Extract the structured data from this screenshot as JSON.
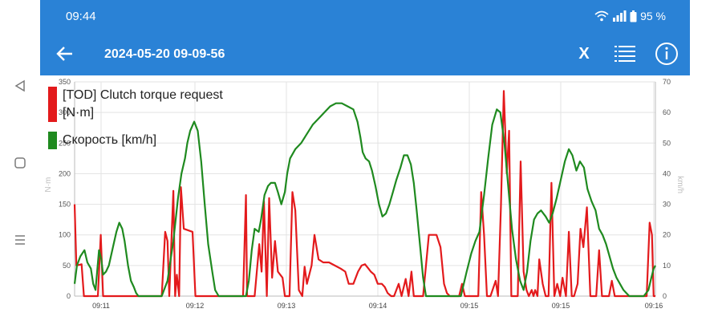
{
  "status_bar": {
    "time": "09:44",
    "battery": "95 %"
  },
  "toolbar": {
    "title": "2024-05-20 09-09-56",
    "x_label": "X"
  },
  "icons": {
    "back": "arrow-left-icon",
    "list": "list-icon",
    "info": "info-icon",
    "x": "close-x-text"
  },
  "colors": {
    "header": "#2a82d6",
    "series_torque": "#e31a1c",
    "series_speed": "#1f8a1f",
    "grid": "#dcdcdc"
  },
  "chart_data": {
    "type": "line",
    "x_ticks": [
      "09:11",
      "09:12",
      "09:13",
      "09:14",
      "09:15",
      "09:15",
      "09:16"
    ],
    "left_axis": {
      "label": "N·m",
      "ticks": [
        0,
        50,
        100,
        150,
        200,
        250,
        300,
        350
      ],
      "range": [
        0,
        350
      ]
    },
    "right_axis": {
      "label": "km/h",
      "ticks": [
        0,
        10,
        20,
        30,
        40,
        50,
        60,
        70
      ],
      "range": [
        0,
        70
      ]
    },
    "legend": [
      {
        "label": "[TOD] Clutch torque request [N·m]",
        "color": "#e31a1c"
      },
      {
        "label": "Скорость [km/h]",
        "color": "#1f8a1f"
      }
    ],
    "series": [
      {
        "name": "[TOD] Clutch torque request [N·m]",
        "axis": "left",
        "color": "#e31a1c",
        "points": [
          [
            0.0,
            150
          ],
          [
            0.003,
            50
          ],
          [
            0.012,
            52
          ],
          [
            0.016,
            0
          ],
          [
            0.04,
            0
          ],
          [
            0.045,
            100
          ],
          [
            0.049,
            0
          ],
          [
            0.065,
            0
          ],
          [
            0.15,
            0
          ],
          [
            0.156,
            105
          ],
          [
            0.16,
            90
          ],
          [
            0.163,
            0
          ],
          [
            0.17,
            172
          ],
          [
            0.173,
            0
          ],
          [
            0.176,
            35
          ],
          [
            0.18,
            0
          ],
          [
            0.183,
            178
          ],
          [
            0.188,
            110
          ],
          [
            0.203,
            105
          ],
          [
            0.208,
            0
          ],
          [
            0.26,
            0
          ],
          [
            0.29,
            0
          ],
          [
            0.295,
            165
          ],
          [
            0.297,
            0
          ],
          [
            0.31,
            0
          ],
          [
            0.318,
            85
          ],
          [
            0.322,
            40
          ],
          [
            0.326,
            155
          ],
          [
            0.331,
            0
          ],
          [
            0.335,
            160
          ],
          [
            0.34,
            30
          ],
          [
            0.345,
            90
          ],
          [
            0.35,
            40
          ],
          [
            0.358,
            30
          ],
          [
            0.362,
            0
          ],
          [
            0.37,
            0
          ],
          [
            0.375,
            170
          ],
          [
            0.38,
            140
          ],
          [
            0.386,
            10
          ],
          [
            0.392,
            0
          ],
          [
            0.396,
            48
          ],
          [
            0.4,
            20
          ],
          [
            0.408,
            50
          ],
          [
            0.413,
            100
          ],
          [
            0.42,
            60
          ],
          [
            0.428,
            55
          ],
          [
            0.438,
            55
          ],
          [
            0.448,
            50
          ],
          [
            0.458,
            45
          ],
          [
            0.466,
            40
          ],
          [
            0.472,
            20
          ],
          [
            0.48,
            20
          ],
          [
            0.488,
            40
          ],
          [
            0.494,
            50
          ],
          [
            0.5,
            52
          ],
          [
            0.506,
            45
          ],
          [
            0.51,
            40
          ],
          [
            0.516,
            35
          ],
          [
            0.522,
            20
          ],
          [
            0.529,
            20
          ],
          [
            0.534,
            15
          ],
          [
            0.539,
            5
          ],
          [
            0.545,
            0
          ],
          [
            0.55,
            0
          ],
          [
            0.558,
            20
          ],
          [
            0.563,
            0
          ],
          [
            0.57,
            28
          ],
          [
            0.575,
            0
          ],
          [
            0.58,
            40
          ],
          [
            0.584,
            0
          ],
          [
            0.6,
            0
          ],
          [
            0.61,
            100
          ],
          [
            0.623,
            100
          ],
          [
            0.63,
            80
          ],
          [
            0.636,
            20
          ],
          [
            0.641,
            5
          ],
          [
            0.646,
            0
          ],
          [
            0.655,
            0
          ],
          [
            0.662,
            0
          ],
          [
            0.667,
            20
          ],
          [
            0.672,
            0
          ],
          [
            0.695,
            0
          ],
          [
            0.7,
            170
          ],
          [
            0.705,
            100
          ],
          [
            0.71,
            0
          ],
          [
            0.716,
            0
          ],
          [
            0.725,
            25
          ],
          [
            0.729,
            0
          ],
          [
            0.734,
            145
          ],
          [
            0.739,
            335
          ],
          [
            0.744,
            200
          ],
          [
            0.748,
            270
          ],
          [
            0.752,
            0
          ],
          [
            0.758,
            0
          ],
          [
            0.763,
            0
          ],
          [
            0.768,
            220
          ],
          [
            0.773,
            40
          ],
          [
            0.778,
            10
          ],
          [
            0.782,
            0
          ],
          [
            0.787,
            10
          ],
          [
            0.79,
            0
          ],
          [
            0.793,
            10
          ],
          [
            0.797,
            0
          ],
          [
            0.8,
            60
          ],
          [
            0.806,
            20
          ],
          [
            0.811,
            0
          ],
          [
            0.816,
            0
          ],
          [
            0.821,
            185
          ],
          [
            0.826,
            0
          ],
          [
            0.831,
            20
          ],
          [
            0.836,
            0
          ],
          [
            0.84,
            30
          ],
          [
            0.846,
            0
          ],
          [
            0.851,
            105
          ],
          [
            0.856,
            0
          ],
          [
            0.86,
            0
          ],
          [
            0.866,
            20
          ],
          [
            0.871,
            110
          ],
          [
            0.876,
            80
          ],
          [
            0.882,
            145
          ],
          [
            0.888,
            0
          ],
          [
            0.893,
            0
          ],
          [
            0.898,
            0
          ],
          [
            0.903,
            75
          ],
          [
            0.908,
            0
          ],
          [
            0.914,
            0
          ],
          [
            0.92,
            0
          ],
          [
            0.925,
            25
          ],
          [
            0.93,
            0
          ],
          [
            0.945,
            0
          ],
          [
            0.965,
            0
          ],
          [
            0.985,
            0
          ],
          [
            0.99,
            120
          ],
          [
            0.994,
            100
          ],
          [
            0.997,
            0
          ],
          [
            1.0,
            0
          ]
        ]
      },
      {
        "name": "Скорость [km/h]",
        "axis": "right",
        "color": "#1f8a1f",
        "points": [
          [
            0.0,
            4
          ],
          [
            0.004,
            10
          ],
          [
            0.01,
            13
          ],
          [
            0.017,
            15
          ],
          [
            0.022,
            11
          ],
          [
            0.028,
            9
          ],
          [
            0.032,
            4
          ],
          [
            0.036,
            2
          ],
          [
            0.042,
            15
          ],
          [
            0.046,
            12
          ],
          [
            0.049,
            7
          ],
          [
            0.054,
            8
          ],
          [
            0.059,
            10
          ],
          [
            0.066,
            16
          ],
          [
            0.072,
            21
          ],
          [
            0.077,
            24
          ],
          [
            0.082,
            22
          ],
          [
            0.086,
            18
          ],
          [
            0.092,
            10
          ],
          [
            0.097,
            5
          ],
          [
            0.102,
            3
          ],
          [
            0.106,
            1
          ],
          [
            0.11,
            0
          ],
          [
            0.15,
            0
          ],
          [
            0.16,
            5
          ],
          [
            0.17,
            18
          ],
          [
            0.178,
            32
          ],
          [
            0.184,
            40
          ],
          [
            0.19,
            45
          ],
          [
            0.194,
            50
          ],
          [
            0.199,
            54
          ],
          [
            0.206,
            57
          ],
          [
            0.212,
            54
          ],
          [
            0.218,
            44
          ],
          [
            0.224,
            30
          ],
          [
            0.23,
            17
          ],
          [
            0.237,
            8
          ],
          [
            0.242,
            2
          ],
          [
            0.248,
            0
          ],
          [
            0.295,
            0
          ],
          [
            0.3,
            5
          ],
          [
            0.305,
            15
          ],
          [
            0.31,
            22
          ],
          [
            0.317,
            21
          ],
          [
            0.321,
            25
          ],
          [
            0.327,
            33
          ],
          [
            0.333,
            36
          ],
          [
            0.338,
            37
          ],
          [
            0.345,
            37
          ],
          [
            0.35,
            34
          ],
          [
            0.356,
            30
          ],
          [
            0.362,
            34
          ],
          [
            0.366,
            40
          ],
          [
            0.371,
            45
          ],
          [
            0.38,
            48
          ],
          [
            0.39,
            50
          ],
          [
            0.4,
            53
          ],
          [
            0.41,
            56
          ],
          [
            0.42,
            58
          ],
          [
            0.43,
            60
          ],
          [
            0.44,
            62
          ],
          [
            0.45,
            63
          ],
          [
            0.46,
            63
          ],
          [
            0.47,
            62
          ],
          [
            0.48,
            61
          ],
          [
            0.487,
            57
          ],
          [
            0.492,
            52
          ],
          [
            0.496,
            47
          ],
          [
            0.501,
            45
          ],
          [
            0.507,
            44
          ],
          [
            0.512,
            41
          ],
          [
            0.518,
            36
          ],
          [
            0.524,
            30
          ],
          [
            0.53,
            26
          ],
          [
            0.536,
            27
          ],
          [
            0.542,
            30
          ],
          [
            0.548,
            34
          ],
          [
            0.554,
            38
          ],
          [
            0.561,
            42
          ],
          [
            0.567,
            46
          ],
          [
            0.573,
            46
          ],
          [
            0.579,
            43
          ],
          [
            0.584,
            37
          ],
          [
            0.589,
            28
          ],
          [
            0.595,
            16
          ],
          [
            0.6,
            6
          ],
          [
            0.605,
            0
          ],
          [
            0.665,
            0
          ],
          [
            0.675,
            8
          ],
          [
            0.683,
            14
          ],
          [
            0.69,
            18
          ],
          [
            0.697,
            21
          ],
          [
            0.705,
            33
          ],
          [
            0.712,
            45
          ],
          [
            0.719,
            56
          ],
          [
            0.727,
            61
          ],
          [
            0.733,
            60
          ],
          [
            0.74,
            50
          ],
          [
            0.747,
            35
          ],
          [
            0.753,
            22
          ],
          [
            0.76,
            12
          ],
          [
            0.767,
            5
          ],
          [
            0.773,
            2
          ],
          [
            0.779,
            8
          ],
          [
            0.785,
            18
          ],
          [
            0.791,
            25
          ],
          [
            0.797,
            27
          ],
          [
            0.803,
            28
          ],
          [
            0.811,
            26
          ],
          [
            0.817,
            24
          ],
          [
            0.823,
            27
          ],
          [
            0.83,
            32
          ],
          [
            0.837,
            38
          ],
          [
            0.844,
            44
          ],
          [
            0.851,
            48
          ],
          [
            0.857,
            46
          ],
          [
            0.864,
            41
          ],
          [
            0.87,
            44
          ],
          [
            0.877,
            42
          ],
          [
            0.883,
            35
          ],
          [
            0.89,
            31
          ],
          [
            0.897,
            28
          ],
          [
            0.903,
            22
          ],
          [
            0.909,
            20
          ],
          [
            0.915,
            17
          ],
          [
            0.921,
            13
          ],
          [
            0.927,
            9
          ],
          [
            0.933,
            6
          ],
          [
            0.939,
            4
          ],
          [
            0.945,
            2
          ],
          [
            0.95,
            1
          ],
          [
            0.955,
            0
          ],
          [
            0.98,
            0
          ],
          [
            0.988,
            2
          ],
          [
            0.993,
            6
          ],
          [
            0.997,
            9
          ],
          [
            1.0,
            10
          ]
        ]
      }
    ]
  }
}
